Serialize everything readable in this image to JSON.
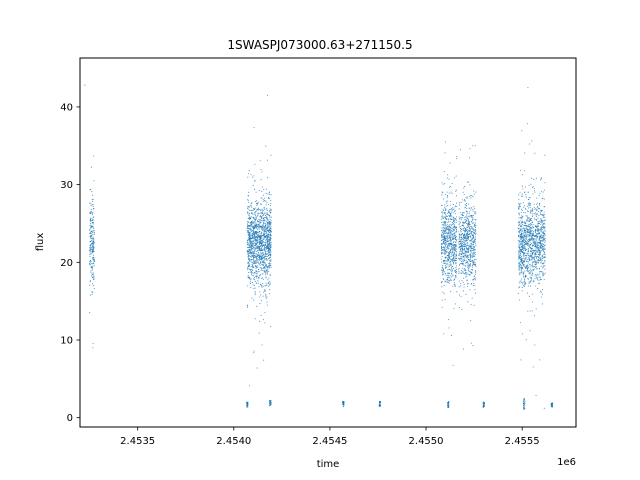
{
  "chart_data": {
    "type": "scatter",
    "title": "1SWASPJ073000.63+271150.5",
    "xlabel": "time",
    "ylabel": "flux",
    "x_offset_label": "1e6",
    "xlim": [
      2453200,
      2455780
    ],
    "ylim": [
      -1.2,
      46.3
    ],
    "x_ticks": [
      2453500,
      2454000,
      2454500,
      2455000,
      2455500
    ],
    "x_tick_labels": [
      "2.4535",
      "2.4540",
      "2.4545",
      "2.4550",
      "2.4555"
    ],
    "y_ticks": [
      0,
      10,
      20,
      30,
      40
    ],
    "y_tick_labels": [
      "0",
      "10",
      "20",
      "30",
      "40"
    ],
    "grid": false,
    "legend": "none",
    "marker_color": "#1f77b4",
    "series": [
      {
        "clusters": [
          {
            "x_start": 2453250,
            "x_end": 2453275,
            "y_center": 22.5,
            "y_min": 9,
            "y_max": 33.7,
            "density": 220
          },
          {
            "x_start": 2454070,
            "x_end": 2454195,
            "y_center": 22.5,
            "y_min": 3,
            "y_max": 39,
            "density": 1400
          },
          {
            "x_start": 2455080,
            "x_end": 2455160,
            "y_center": 22.5,
            "y_min": 4,
            "y_max": 35.5,
            "density": 700
          },
          {
            "x_start": 2455170,
            "x_end": 2455260,
            "y_center": 22.5,
            "y_min": 5,
            "y_max": 35,
            "density": 700
          },
          {
            "x_start": 2455480,
            "x_end": 2455620,
            "y_center": 22.5,
            "y_min": 2,
            "y_max": 44,
            "density": 1200
          }
        ],
        "low_clusters": [
          {
            "x": 2454070,
            "y_min": 1.3,
            "y_max": 2.0
          },
          {
            "x": 2454190,
            "y_min": 1.5,
            "y_max": 2.3
          },
          {
            "x": 2454570,
            "y_min": 1.4,
            "y_max": 2.1
          },
          {
            "x": 2454760,
            "y_min": 1.4,
            "y_max": 2.1
          },
          {
            "x": 2455115,
            "y_min": 1.3,
            "y_max": 2.1
          },
          {
            "x": 2455300,
            "y_min": 1.3,
            "y_max": 2.1
          },
          {
            "x": 2455510,
            "y_min": 1.1,
            "y_max": 2.5
          },
          {
            "x": 2455655,
            "y_min": 1.4,
            "y_max": 1.9
          }
        ],
        "outliers": [
          {
            "x": 2453225,
            "y": 42.8
          },
          {
            "x": 2454175,
            "y": 41.5
          },
          {
            "x": 2455530,
            "y": 42.5
          },
          {
            "x": 2455615,
            "y": 1.2
          }
        ]
      }
    ]
  }
}
